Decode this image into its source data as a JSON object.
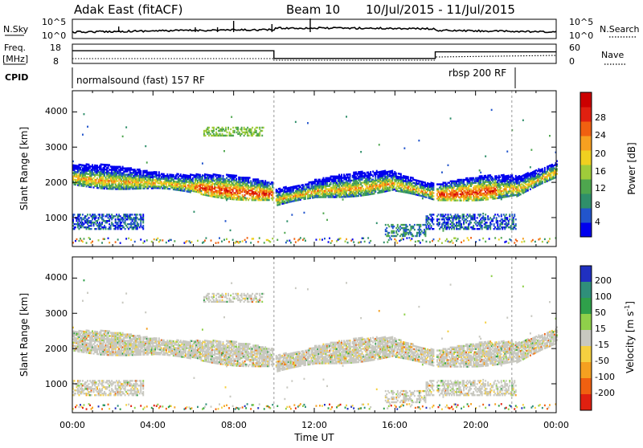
{
  "header": {
    "station": "Adak East (fitACF)",
    "beam": "Beam 10",
    "dates": "10/Jul/2015 - 11/Jul/2015"
  },
  "chart_data": {
    "type": "heatmap",
    "time_ticks": [
      "00:00",
      "04:00",
      "08:00",
      "12:00",
      "16:00",
      "20:00",
      "00:00"
    ],
    "xlabel": "Time UT",
    "xlim": [
      0,
      24
    ],
    "summary_panels": {
      "nsky_label": "N.Sky",
      "nsearch_label": "N.Search",
      "nsky_ticks": [
        "10^5",
        "10^0"
      ],
      "freq_label": "Freq.",
      "freq_unit": "[MHz]",
      "freq_ticks": [
        "18",
        "8"
      ],
      "nave_label": "Nave",
      "nave_ticks": [
        "60",
        "0"
      ],
      "cpid_label": "CPID",
      "freq_series": [
        {
          "x": 0,
          "y": 14.6
        },
        {
          "x": 10.0,
          "y": 14.6
        },
        {
          "x": 10.0,
          "y": 10.6
        },
        {
          "x": 18.0,
          "y": 10.6
        },
        {
          "x": 18.0,
          "y": 14.0
        },
        {
          "x": 24,
          "y": 14.0
        }
      ],
      "cpid_segments": [
        {
          "label": "normalsound (fast) 157 RF",
          "start": 0,
          "end": 18.0
        },
        {
          "label": "rbsp 200 RF",
          "start": 18.0,
          "end": 21.8
        }
      ]
    },
    "power_panel": {
      "ylabel": "Slant Range [km]",
      "ylim": [
        180,
        4600
      ],
      "yticks": [
        "1000",
        "2000",
        "3000",
        "4000"
      ],
      "colorbar_label": "Power [dB]",
      "colorbar_ticks": [
        "4",
        "8",
        "12",
        "16",
        "20",
        "24",
        "28"
      ],
      "colors": [
        "#0000ee",
        "#2255cc",
        "#2f8f6a",
        "#4ea64e",
        "#9fcc3a",
        "#f0d020",
        "#f7a020",
        "#f06010",
        "#e02010",
        "#cc0000"
      ]
    },
    "velocity_panel": {
      "ylabel": "Slant Range [km]",
      "ylim": [
        180,
        4600
      ],
      "yticks": [
        "1000",
        "2000",
        "3000",
        "4000"
      ],
      "colorbar_label": "Velocity [m s",
      "colorbar_sup": "-1",
      "colorbar_ticks": [
        "200",
        "100",
        "50",
        "15",
        "-15",
        "-50",
        "-100",
        "-200"
      ],
      "colors": [
        "#2030c0",
        "#2f8f7a",
        "#2fa04a",
        "#8fd04a",
        "#c8c8c0",
        "#f5d040",
        "#f5a020",
        "#f06010",
        "#e02010"
      ]
    }
  }
}
